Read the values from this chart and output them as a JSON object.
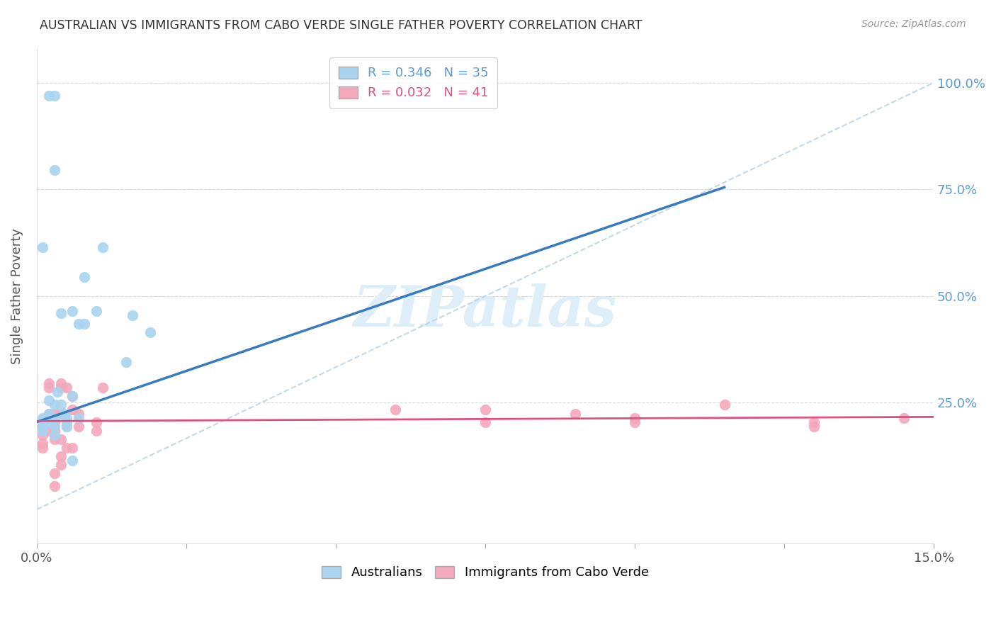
{
  "title": "AUSTRALIAN VS IMMIGRANTS FROM CABO VERDE SINGLE FATHER POVERTY CORRELATION CHART",
  "source": "Source: ZipAtlas.com",
  "ylabel": "Single Father Poverty",
  "right_yticks": [
    "100.0%",
    "75.0%",
    "50.0%",
    "25.0%"
  ],
  "right_ytick_vals": [
    1.0,
    0.75,
    0.5,
    0.25
  ],
  "xlim": [
    0.0,
    0.15
  ],
  "ylim": [
    -0.08,
    1.08
  ],
  "watermark": "ZIPatlas",
  "scatter_blue": [
    [
      0.001,
      0.195
    ],
    [
      0.001,
      0.21
    ],
    [
      0.001,
      0.215
    ],
    [
      0.001,
      0.185
    ],
    [
      0.002,
      0.255
    ],
    [
      0.002,
      0.225
    ],
    [
      0.002,
      0.215
    ],
    [
      0.002,
      0.205
    ],
    [
      0.003,
      0.215
    ],
    [
      0.003,
      0.195
    ],
    [
      0.003,
      0.245
    ],
    [
      0.003,
      0.175
    ],
    [
      0.0035,
      0.275
    ],
    [
      0.004,
      0.245
    ],
    [
      0.0045,
      0.225
    ],
    [
      0.004,
      0.46
    ],
    [
      0.005,
      0.205
    ],
    [
      0.005,
      0.215
    ],
    [
      0.005,
      0.195
    ],
    [
      0.006,
      0.265
    ],
    [
      0.006,
      0.465
    ],
    [
      0.006,
      0.115
    ],
    [
      0.007,
      0.435
    ],
    [
      0.007,
      0.215
    ],
    [
      0.008,
      0.545
    ],
    [
      0.008,
      0.435
    ],
    [
      0.01,
      0.465
    ],
    [
      0.011,
      0.615
    ],
    [
      0.015,
      0.345
    ],
    [
      0.016,
      0.455
    ],
    [
      0.019,
      0.415
    ],
    [
      0.002,
      0.97
    ],
    [
      0.003,
      0.97
    ],
    [
      0.003,
      0.795
    ],
    [
      0.001,
      0.615
    ]
  ],
  "scatter_pink": [
    [
      0.001,
      0.195
    ],
    [
      0.001,
      0.175
    ],
    [
      0.001,
      0.155
    ],
    [
      0.001,
      0.145
    ],
    [
      0.002,
      0.295
    ],
    [
      0.002,
      0.285
    ],
    [
      0.002,
      0.225
    ],
    [
      0.002,
      0.185
    ],
    [
      0.003,
      0.225
    ],
    [
      0.003,
      0.205
    ],
    [
      0.003,
      0.185
    ],
    [
      0.003,
      0.165
    ],
    [
      0.003,
      0.085
    ],
    [
      0.003,
      0.055
    ],
    [
      0.004,
      0.285
    ],
    [
      0.004,
      0.295
    ],
    [
      0.004,
      0.225
    ],
    [
      0.004,
      0.165
    ],
    [
      0.004,
      0.125
    ],
    [
      0.004,
      0.105
    ],
    [
      0.005,
      0.285
    ],
    [
      0.005,
      0.195
    ],
    [
      0.005,
      0.145
    ],
    [
      0.006,
      0.265
    ],
    [
      0.006,
      0.235
    ],
    [
      0.006,
      0.145
    ],
    [
      0.007,
      0.225
    ],
    [
      0.007,
      0.195
    ],
    [
      0.01,
      0.205
    ],
    [
      0.01,
      0.185
    ],
    [
      0.011,
      0.285
    ],
    [
      0.06,
      0.235
    ],
    [
      0.075,
      0.205
    ],
    [
      0.075,
      0.235
    ],
    [
      0.09,
      0.225
    ],
    [
      0.1,
      0.215
    ],
    [
      0.1,
      0.205
    ],
    [
      0.115,
      0.245
    ],
    [
      0.13,
      0.205
    ],
    [
      0.13,
      0.195
    ],
    [
      0.145,
      0.215
    ]
  ],
  "blue_line_x": [
    0.0,
    0.115
  ],
  "blue_line_y": [
    0.205,
    0.755
  ],
  "pink_line_x": [
    0.0,
    0.15
  ],
  "pink_line_y": [
    0.207,
    0.217
  ],
  "diag_line_x": [
    0.0,
    0.15
  ],
  "diag_line_y": [
    0.0,
    1.0
  ],
  "dot_size": 110,
  "blue_color": "#a8d4f0",
  "pink_color": "#f4a8bc",
  "blue_line_color": "#3a7abf",
  "pink_line_color": "#e05080",
  "diag_line_color": "#b8cfe0",
  "grid_color": "#d0d0d0",
  "watermark_color": "#ddeef8",
  "background_color": "#ffffff",
  "title_color": "#333333",
  "source_color": "#999999",
  "ylabel_color": "#555555",
  "right_tick_color": "#5b9bd5",
  "xtick_color": "#555555",
  "legend1_text_colors": [
    "#5b9bd5",
    "#e05080"
  ],
  "legend1_labels": [
    "R = 0.346   N = 35",
    "R = 0.032   N = 41"
  ],
  "legend_bottom_labels": [
    "Australians",
    "Immigrants from Cabo Verde"
  ]
}
